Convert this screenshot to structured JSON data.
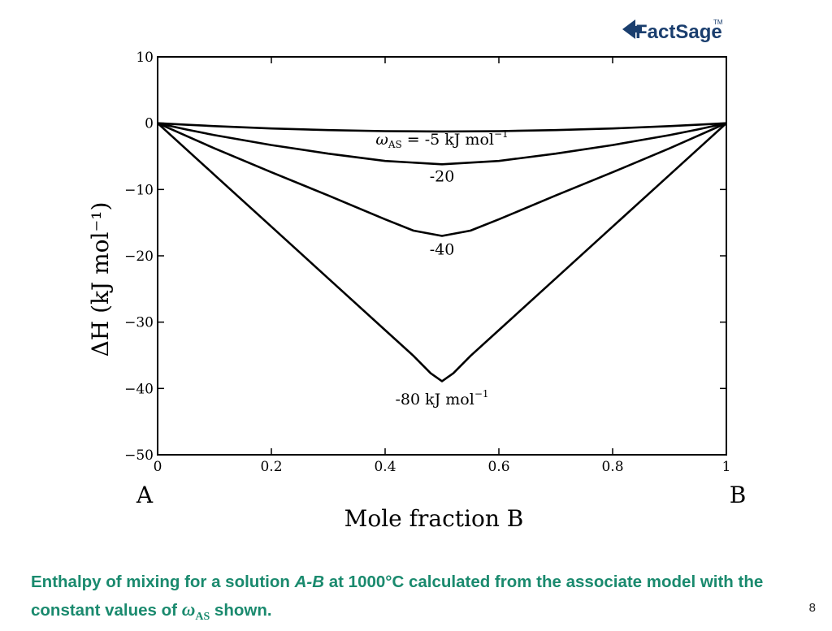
{
  "logo": {
    "text": "FactSage",
    "tm": "TM",
    "color": "#1a3e6e"
  },
  "chart_data": {
    "type": "line",
    "xlabel": "Mole fraction B",
    "ylabel": "ΔH (kJ mol⁻¹)",
    "xlim": [
      0,
      1
    ],
    "ylim": [
      -50,
      10
    ],
    "xticks": [
      {
        "value": 0,
        "label": "0"
      },
      {
        "value": 0.2,
        "label": "0.2"
      },
      {
        "value": 0.4,
        "label": "0.4"
      },
      {
        "value": 0.6,
        "label": "0.6"
      },
      {
        "value": 0.8,
        "label": "0.8"
      },
      {
        "value": 1,
        "label": "1"
      }
    ],
    "yticks": [
      {
        "value": 10,
        "label": "10"
      },
      {
        "value": 0,
        "label": "0"
      },
      {
        "value": -10,
        "label": "−10"
      },
      {
        "value": -20,
        "label": "−20"
      },
      {
        "value": -30,
        "label": "−30"
      },
      {
        "value": -40,
        "label": "−40"
      },
      {
        "value": -50,
        "label": "−50"
      }
    ],
    "end_labels": {
      "left": "A",
      "right": "B"
    },
    "grid": false,
    "series": [
      {
        "omega": -5,
        "x": [
          0,
          0.05,
          0.1,
          0.2,
          0.3,
          0.4,
          0.5,
          0.6,
          0.7,
          0.8,
          0.9,
          0.95,
          1
        ],
        "y": [
          0,
          -0.24,
          -0.45,
          -0.8,
          -1.05,
          -1.2,
          -1.25,
          -1.2,
          -1.05,
          -0.8,
          -0.45,
          -0.24,
          0
        ]
      },
      {
        "omega": -20,
        "x": [
          0,
          0.05,
          0.1,
          0.2,
          0.3,
          0.4,
          0.5,
          0.6,
          0.7,
          0.8,
          0.9,
          0.95,
          1
        ],
        "y": [
          0,
          -0.95,
          -1.8,
          -3.3,
          -4.6,
          -5.7,
          -6.2,
          -5.7,
          -4.6,
          -3.3,
          -1.8,
          -0.95,
          0
        ]
      },
      {
        "omega": -40,
        "x": [
          0,
          0.05,
          0.1,
          0.2,
          0.3,
          0.4,
          0.45,
          0.5,
          0.55,
          0.6,
          0.7,
          0.8,
          0.9,
          0.95,
          1
        ],
        "y": [
          0,
          -1.9,
          -3.8,
          -7.4,
          -10.9,
          -14.5,
          -16.2,
          -17.0,
          -16.2,
          -14.5,
          -10.9,
          -7.4,
          -3.8,
          -1.9,
          0
        ]
      },
      {
        "omega": -80,
        "x": [
          0,
          0.1,
          0.2,
          0.3,
          0.4,
          0.45,
          0.48,
          0.5,
          0.52,
          0.55,
          0.6,
          0.7,
          0.8,
          0.9,
          1
        ],
        "y": [
          0,
          -7.8,
          -15.6,
          -23.4,
          -31.2,
          -35.1,
          -37.7,
          -38.9,
          -37.7,
          -35.1,
          -31.2,
          -23.4,
          -15.6,
          -7.8,
          0
        ]
      }
    ],
    "annotations": [
      {
        "text": "ω",
        "sub": "AS",
        "rest": "= -5 kJ mol",
        "sup": "−1",
        "x": 0.5,
        "y": -3.2
      },
      {
        "text": "-20",
        "x": 0.5,
        "y": -8.8
      },
      {
        "text": "-40",
        "x": 0.5,
        "y": -19.8
      },
      {
        "text": "-80 kJ mol",
        "sup": "−1",
        "x": 0.5,
        "y": -42.4
      }
    ]
  },
  "caption": {
    "part1": "Enthalpy of mixing for a solution ",
    "part2": "A",
    "part3": "-",
    "part4": "B",
    "part5": " at 1000°C calculated from the associate model with the constant values of ",
    "omega": "ω",
    "omega_sub": "AS",
    "part6": " shown."
  },
  "page_number": "8"
}
